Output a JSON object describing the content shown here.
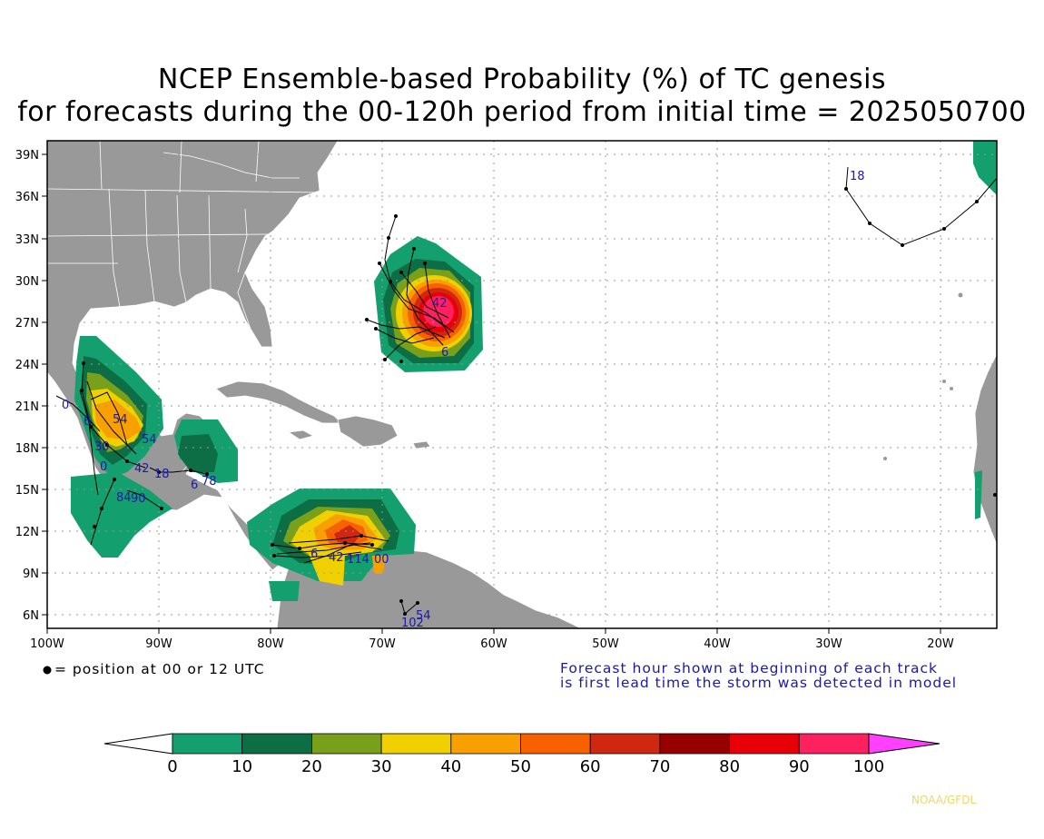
{
  "title": {
    "line1": "NCEP Ensemble-based Probability (%) of TC genesis",
    "line2": "for forecasts during the 00-120h period from initial time = 2025050700"
  },
  "axes": {
    "lat_labels": [
      "39N",
      "36N",
      "33N",
      "30N",
      "27N",
      "24N",
      "21N",
      "18N",
      "15N",
      "12N",
      "9N",
      "6N"
    ],
    "lon_labels": [
      "100W",
      "90W",
      "80W",
      "70W",
      "60W",
      "50W",
      "40W",
      "30W",
      "20W"
    ]
  },
  "notes": {
    "position_marker": "= position at 00 or 12 UTC",
    "forecast_line1": "Forecast hour shown at beginning of each track",
    "forecast_line2": "is first lead time the storm was detected in model"
  },
  "colorbar": {
    "ticks": [
      "0",
      "10",
      "20",
      "30",
      "40",
      "50",
      "60",
      "70",
      "80",
      "90",
      "100"
    ],
    "colors": [
      "#14a06e",
      "#0d6e45",
      "#78a01a",
      "#f0d000",
      "#f8a000",
      "#f86000",
      "#d02810",
      "#980000",
      "#e80008",
      "#ff2060",
      "#ff40ff"
    ]
  },
  "track_labels": {
    "atlantic_north": [
      "18"
    ],
    "bermuda_region": [
      "42",
      "6"
    ],
    "gulf": [
      "0",
      "6",
      "54",
      "30",
      "0",
      "42",
      "18",
      "78"
    ],
    "central_america": [
      "84",
      "90",
      "6"
    ],
    "caribbean": [
      "6",
      "42",
      "114",
      "00"
    ],
    "venezuela": [
      "54",
      "102"
    ]
  },
  "credit": "NOAA/GFDL",
  "colors": {
    "land": "#999999",
    "track": "#000000",
    "label_text": "#1a1aa6"
  }
}
